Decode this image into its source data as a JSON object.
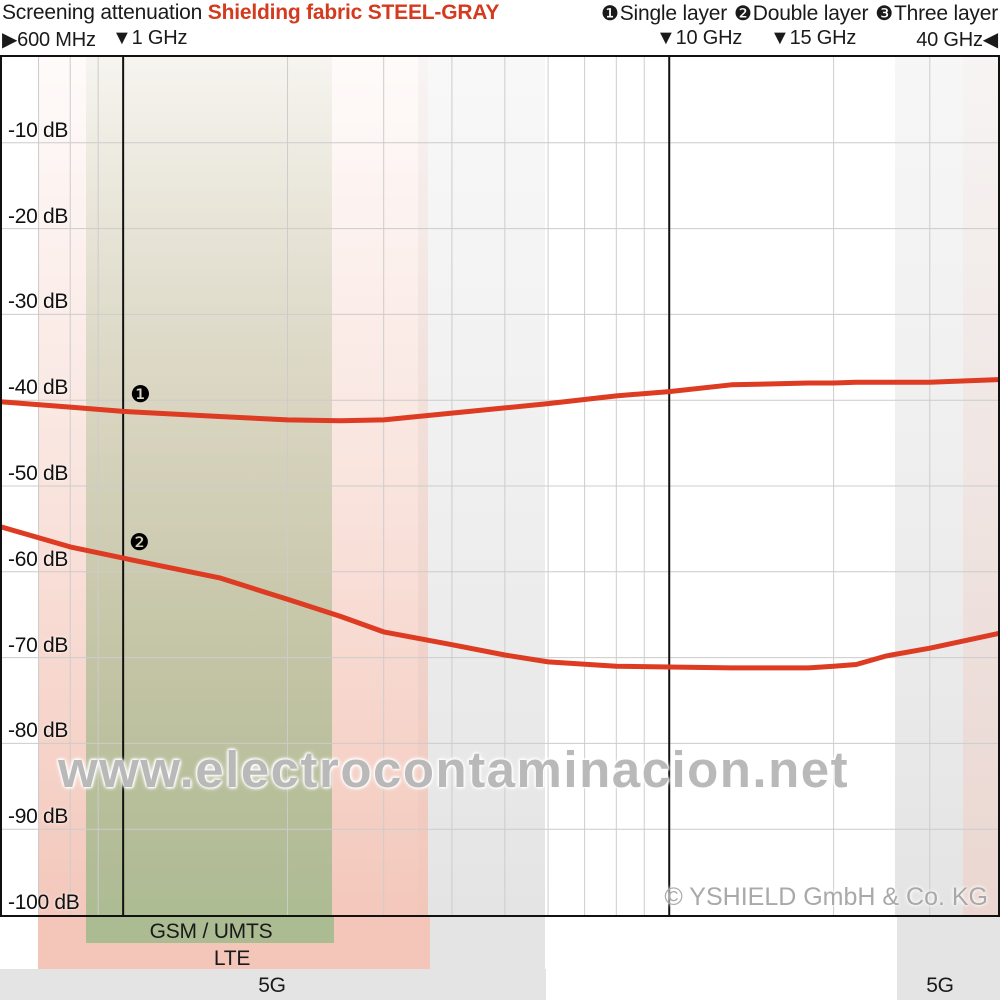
{
  "header": {
    "title_black": "Screening attenuation ",
    "title_red": "Shielding fabric STEEL-GRAY",
    "legend": [
      {
        "glyph": "❶",
        "label": "Single layer"
      },
      {
        "glyph": "❷",
        "label": "Double layer"
      },
      {
        "glyph": "❸",
        "label": "Three layer"
      }
    ],
    "freq_markers": [
      {
        "text": "▶600 MHz"
      },
      {
        "text": "▼1 GHz"
      },
      {
        "text": "▼10 GHz"
      },
      {
        "text": "▼15 GHz"
      },
      {
        "text": "40 GHz◀"
      }
    ]
  },
  "y_axis_labels": [
    "-10 dB",
    "-20 dB",
    "-30 dB",
    "-40 dB",
    "-50 dB",
    "-60 dB",
    "-70 dB",
    "-80 dB",
    "-90 dB",
    "-100 dB"
  ],
  "band_labels": {
    "gsm_umts": "GSM / UMTS",
    "lte": "LTE",
    "fiveg_left": "5G",
    "fiveg_right": "5G"
  },
  "watermark": "www.electrocontaminacion.net",
  "copyright": "© YSHIELD GmbH & Co. KG",
  "colors": {
    "curve": "#dd3b22",
    "title_red": "#d43a1d",
    "grid_minor": "#cccccc",
    "grid_major": "#111111",
    "band_green": "171,187,146",
    "band_pink": "243,198,185",
    "band_gray": "228,228,228"
  },
  "chart_data": {
    "type": "line",
    "title": "Screening attenuation Shielding fabric STEEL-GRAY",
    "x_axis": {
      "scale": "log",
      "unit": "GHz",
      "range_ghz": [
        0.6,
        40
      ],
      "labeled_points": [
        "600 MHz",
        "1 GHz",
        "10 GHz",
        "15 GHz",
        "40 GHz"
      ],
      "major_gridlines_ghz": [
        1,
        10
      ],
      "minor_gridlines_ghz": [
        0.7,
        0.8,
        0.9,
        2,
        3,
        4,
        5,
        6,
        7,
        8,
        9,
        20,
        30
      ]
    },
    "y_axis": {
      "unit": "dB",
      "range": [
        -100,
        0
      ],
      "tick_step": 10,
      "tick_labels": [
        "-10 dB",
        "-20 dB",
        "-30 dB",
        "-40 dB",
        "-50 dB",
        "-60 dB",
        "-70 dB",
        "-80 dB",
        "-90 dB",
        "-100 dB"
      ]
    },
    "series": [
      {
        "name": "Single layer",
        "marker_glyph": "❶",
        "x_ghz": [
          0.6,
          0.8,
          1,
          1.5,
          2,
          2.5,
          3,
          4,
          5,
          6,
          8,
          10,
          13,
          18,
          20,
          22,
          25,
          30,
          40
        ],
        "y_db": [
          -40.2,
          -40.8,
          -41.3,
          -41.9,
          -42.3,
          -42.4,
          -42.3,
          -41.5,
          -40.9,
          -40.4,
          -39.5,
          -39.0,
          -38.2,
          -38.0,
          -38.0,
          -37.9,
          -37.9,
          -37.9,
          -37.6
        ]
      },
      {
        "name": "Double layer",
        "marker_glyph": "❷",
        "x_ghz": [
          0.6,
          0.8,
          1,
          1.5,
          2,
          2.5,
          3,
          4,
          5,
          6,
          8,
          10,
          13,
          18,
          20,
          22,
          25,
          30,
          40
        ],
        "y_db": [
          -54.8,
          -57.1,
          -58.4,
          -60.7,
          -63.2,
          -65.2,
          -67.0,
          -68.5,
          -69.7,
          -70.5,
          -71.0,
          -71.1,
          -71.2,
          -71.2,
          -71.0,
          -70.8,
          -69.8,
          -68.9,
          -67.2
        ]
      },
      {
        "name": "Three layer",
        "marker_glyph": "❸",
        "x_ghz": [],
        "y_db": []
      }
    ],
    "frequency_bands": [
      {
        "label": "GSM / UMTS",
        "color_key": "band_green",
        "x_range_ghz": [
          0.87,
          2.43
        ]
      },
      {
        "label": "LTE",
        "color_key": "band_pink",
        "x_range_ghz": [
          0.71,
          3.66
        ]
      },
      {
        "label": "5G",
        "color_key": "band_gray",
        "x_range_ghz": [
          0.6,
          6.0
        ]
      },
      {
        "label": "5G",
        "color_key": "band_gray",
        "x_range_ghz": [
          26.0,
          40.0
        ]
      }
    ],
    "legend_position": "top-right",
    "grid": true
  }
}
